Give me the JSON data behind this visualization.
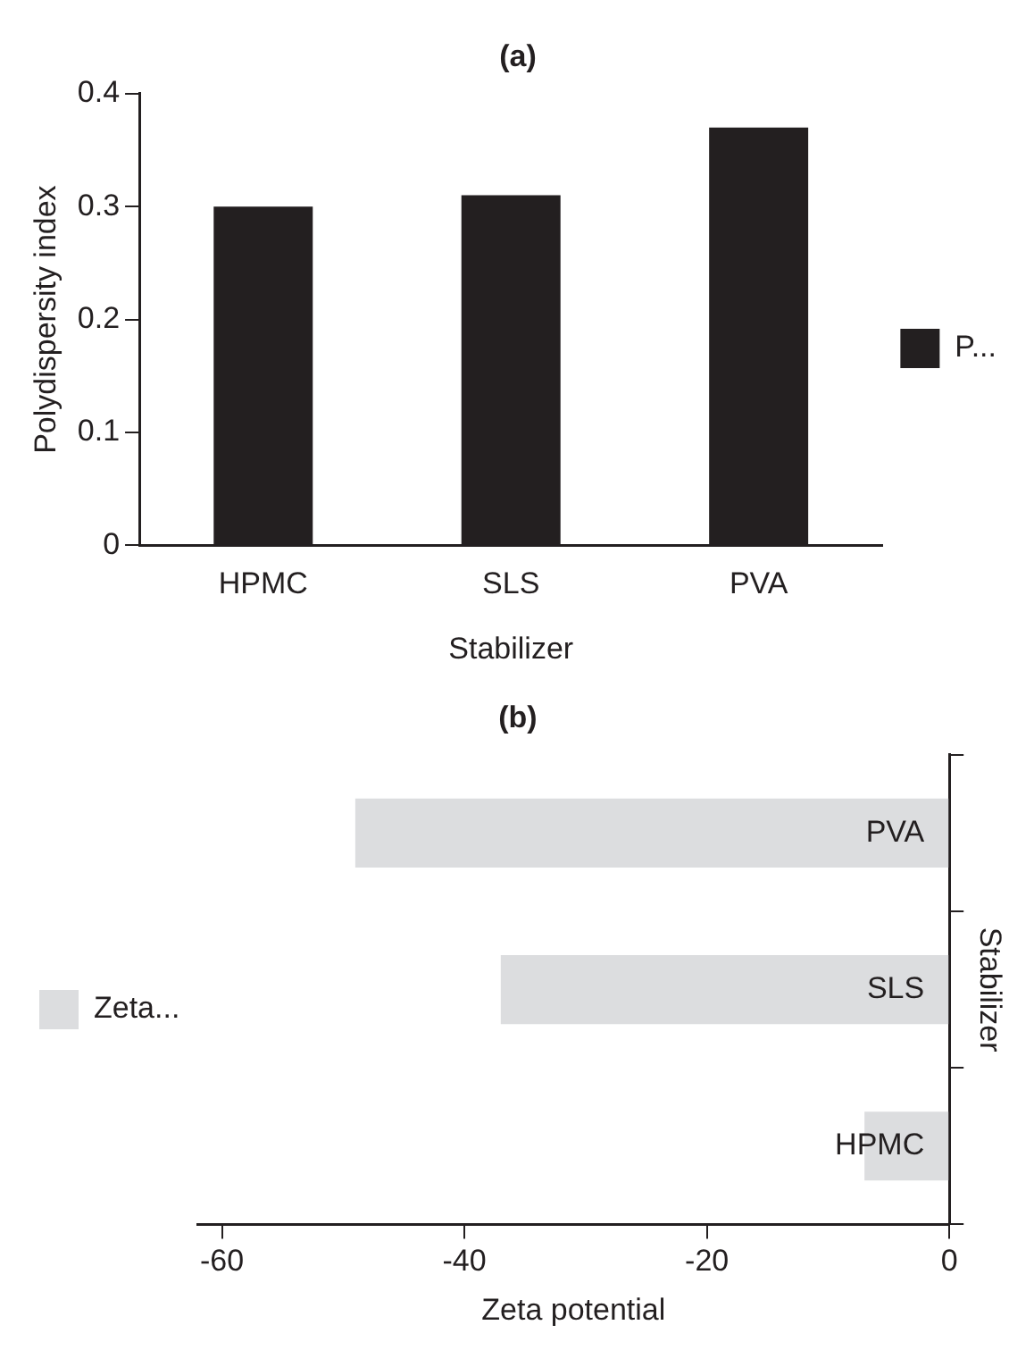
{
  "chart_data": [
    {
      "type": "bar",
      "title": "(a)",
      "xlabel": "Stabilizer",
      "ylabel": "Polydispersity index",
      "categories": [
        "HPMC",
        "SLS",
        "PVA"
      ],
      "series": [
        {
          "name": "P...",
          "color": "#231f20",
          "values": [
            0.3,
            0.31,
            0.37
          ]
        }
      ],
      "ylim": [
        0,
        0.4
      ],
      "yticks": [
        0,
        0.1,
        0.2,
        0.3,
        0.4
      ],
      "grid": false,
      "legend": "right"
    },
    {
      "type": "bar",
      "orientation": "horizontal",
      "title": "(b)",
      "xlabel": "Zeta potential",
      "ylabel": "Stabilizer",
      "categories": [
        "PVA",
        "SLS",
        "HPMC"
      ],
      "series": [
        {
          "name": "Zeta...",
          "color": "#dcdddf",
          "values": [
            -49,
            -37,
            -7
          ]
        }
      ],
      "xlim": [
        -62,
        0
      ],
      "xticks": [
        -60,
        -40,
        -20,
        0
      ],
      "grid": false,
      "legend": "left"
    }
  ]
}
